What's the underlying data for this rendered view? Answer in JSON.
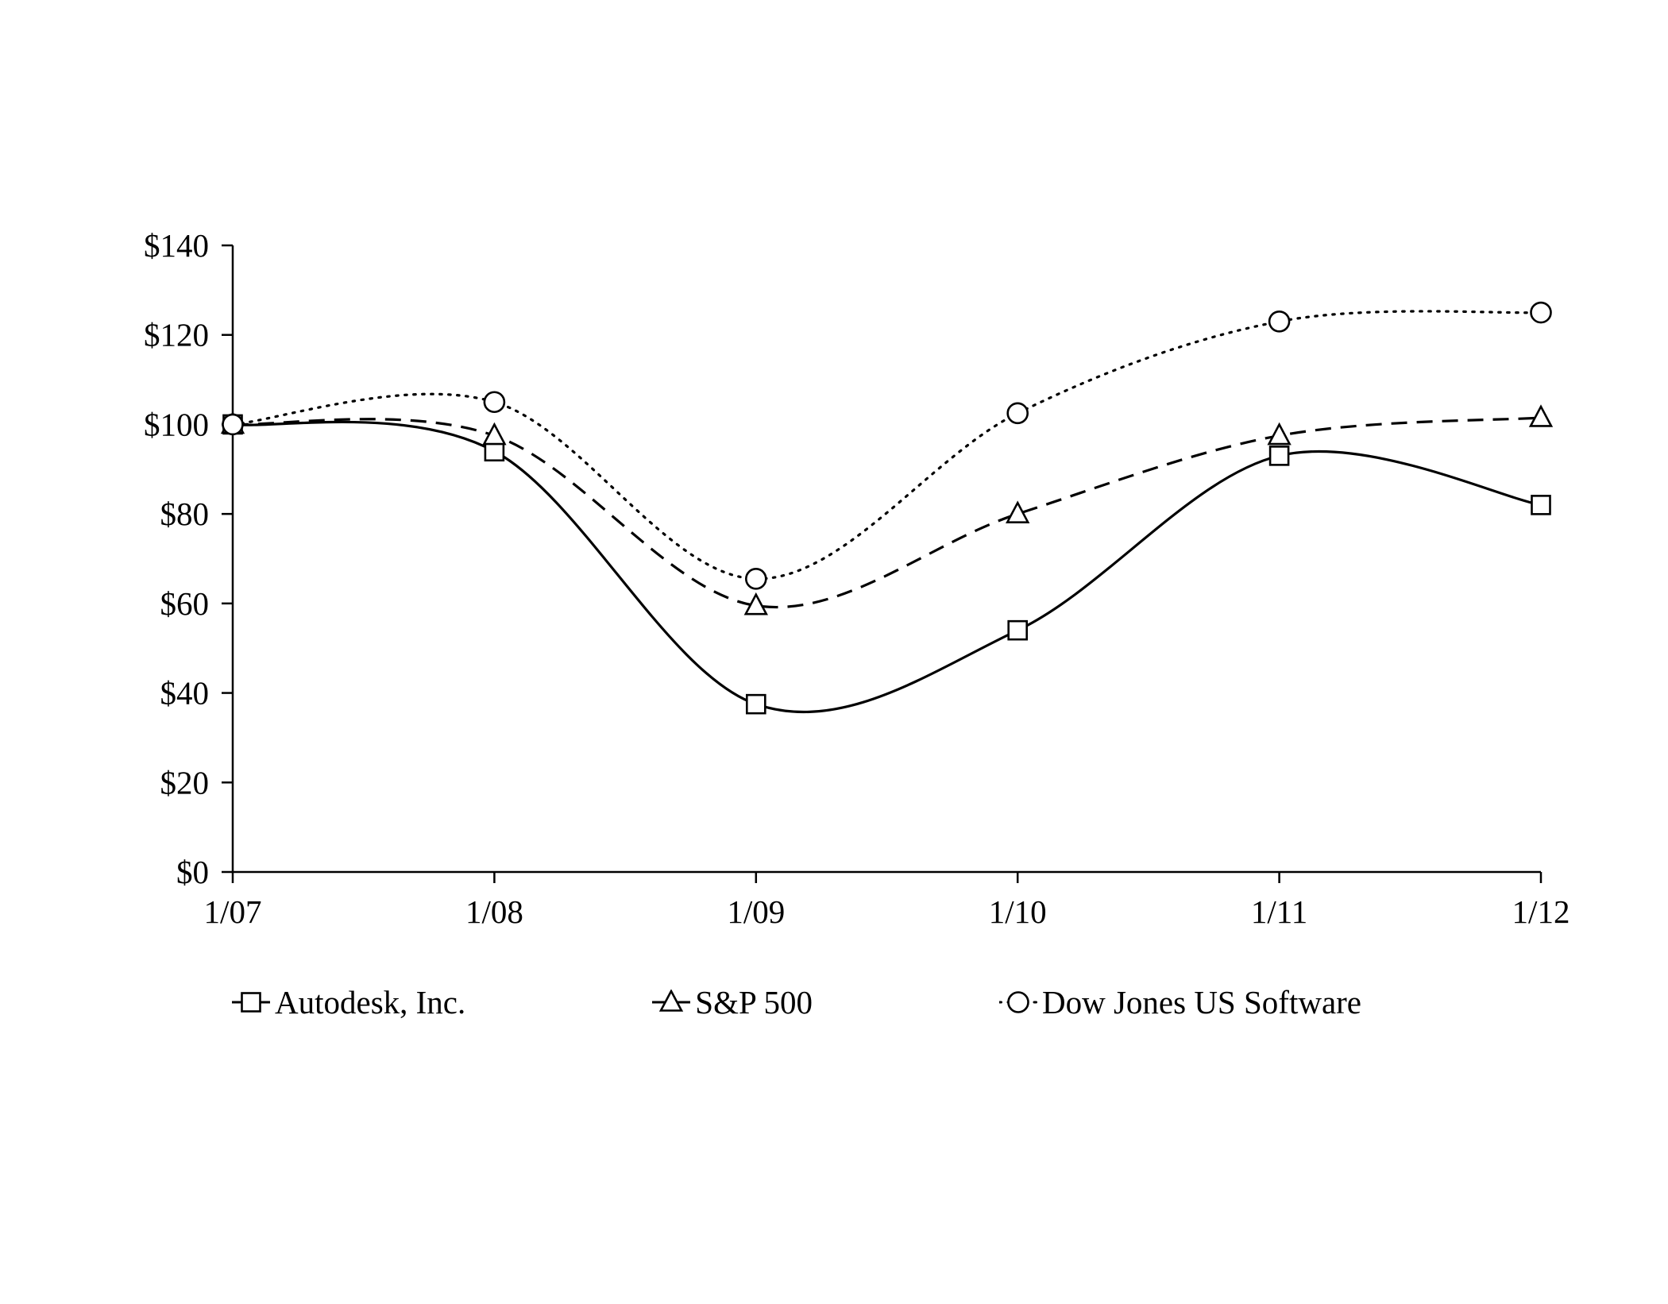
{
  "chart_data": {
    "type": "line",
    "title": "",
    "xlabel": "",
    "ylabel": "",
    "x": [
      "1/07",
      "1/08",
      "1/09",
      "1/10",
      "1/11",
      "1/12"
    ],
    "series": [
      {
        "name": "Autodesk, Inc.",
        "values": [
          100,
          94,
          37.5,
          54,
          93,
          82
        ],
        "line_style": "solid",
        "marker": "square"
      },
      {
        "name": "S&P 500",
        "values": [
          100,
          97.5,
          59.5,
          80,
          97.5,
          101.5
        ],
        "line_style": "dashed",
        "marker": "triangle"
      },
      {
        "name": "Dow Jones US Software",
        "values": [
          100,
          105,
          65.5,
          102.5,
          123,
          125
        ],
        "line_style": "dotted",
        "marker": "circle"
      }
    ],
    "ylim": [
      0,
      140
    ],
    "ytick_step": 20,
    "ytick_prefix": "$",
    "grid": false,
    "legend_position": "bottom",
    "axis_color": "#000000",
    "line_color": "#000000",
    "background": "#ffffff"
  }
}
